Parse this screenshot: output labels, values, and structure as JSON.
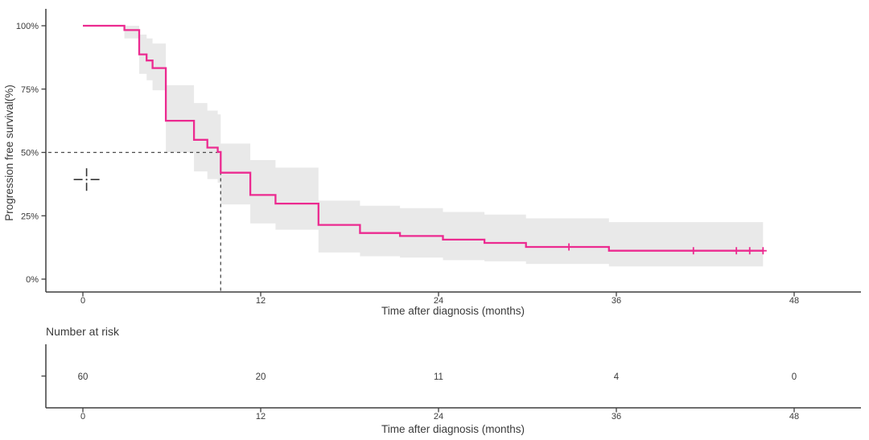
{
  "chart_data": {
    "type": "line",
    "subtype": "kaplan_meier_step_with_confidence_band",
    "title": "",
    "xlabel": "Time after diagnosis (months)",
    "ylabel": "Progression free survival(%)",
    "xlim": [
      0,
      48
    ],
    "ylim": [
      0,
      100
    ],
    "x_ticks": [
      0,
      12,
      24,
      36,
      48
    ],
    "x_tick_labels": [
      "0",
      "12",
      "24",
      "36",
      "48"
    ],
    "y_ticks": [
      0,
      25,
      50,
      75,
      100
    ],
    "y_tick_labels": [
      "0%",
      "25%",
      "50%",
      "75%",
      "100%"
    ],
    "grid": false,
    "legend_position": "none",
    "series": [
      {
        "name": "Progression free survival",
        "color": "#EC2A90",
        "steps": [
          {
            "t": 0.0,
            "s": 100.0,
            "lo": 100.0,
            "hi": 100.0
          },
          {
            "t": 2.8,
            "s": 98.3,
            "lo": 95.0,
            "hi": 100.0
          },
          {
            "t": 3.8,
            "s": 88.7,
            "lo": 81.0,
            "hi": 96.5
          },
          {
            "t": 4.3,
            "s": 86.3,
            "lo": 78.5,
            "hi": 95.0
          },
          {
            "t": 4.7,
            "s": 83.3,
            "lo": 74.5,
            "hi": 93.0
          },
          {
            "t": 5.6,
            "s": 62.5,
            "lo": 50.0,
            "hi": 76.5
          },
          {
            "t": 7.5,
            "s": 55.0,
            "lo": 42.5,
            "hi": 69.5
          },
          {
            "t": 8.4,
            "s": 51.9,
            "lo": 39.5,
            "hi": 66.5
          },
          {
            "t": 9.1,
            "s": 50.2,
            "lo": 38.0,
            "hi": 65.0
          },
          {
            "t": 9.3,
            "s": 42.0,
            "lo": 29.5,
            "hi": 53.5
          },
          {
            "t": 11.3,
            "s": 33.2,
            "lo": 22.0,
            "hi": 47.0
          },
          {
            "t": 13.0,
            "s": 29.8,
            "lo": 19.5,
            "hi": 44.0
          },
          {
            "t": 15.9,
            "s": 21.4,
            "lo": 10.5,
            "hi": 31.0
          },
          {
            "t": 18.7,
            "s": 18.2,
            "lo": 9.0,
            "hi": 29.0
          },
          {
            "t": 21.4,
            "s": 17.0,
            "lo": 8.5,
            "hi": 28.0
          },
          {
            "t": 24.3,
            "s": 15.6,
            "lo": 7.5,
            "hi": 26.5
          },
          {
            "t": 27.1,
            "s": 14.3,
            "lo": 7.0,
            "hi": 25.5
          },
          {
            "t": 29.9,
            "s": 12.7,
            "lo": 6.0,
            "hi": 24.0
          },
          {
            "t": 35.5,
            "s": 11.2,
            "lo": 5.0,
            "hi": 22.5
          },
          {
            "t": 45.9,
            "s": 11.2,
            "lo": 5.0,
            "hi": 22.5
          }
        ],
        "censor_times": [
          32.8,
          41.2,
          44.1,
          45.0,
          45.9
        ]
      }
    ],
    "median_line": {
      "time_months": 9.3,
      "survival_pct": 50,
      "style": "dashed"
    },
    "annotations": [
      {
        "name": "dashed-crosshair-marker",
        "t": 0.25,
        "survival_pct": 39.3
      }
    ]
  },
  "risk_table": {
    "title": "Number at risk",
    "xlabel": "Time after diagnosis (months)",
    "times": [
      0,
      12,
      24,
      36,
      48
    ],
    "x_tick_labels": [
      "0",
      "12",
      "24",
      "36",
      "48"
    ],
    "counts": [
      "60",
      "20",
      "11",
      "4",
      "0"
    ]
  },
  "colors": {
    "curve": "#EC2A90",
    "ci_band": "#E9E9E9",
    "axis": "#3F3F3F",
    "text": "#3A3A3A",
    "dashed": "#4A4A4A",
    "background": "#FFFFFF"
  }
}
